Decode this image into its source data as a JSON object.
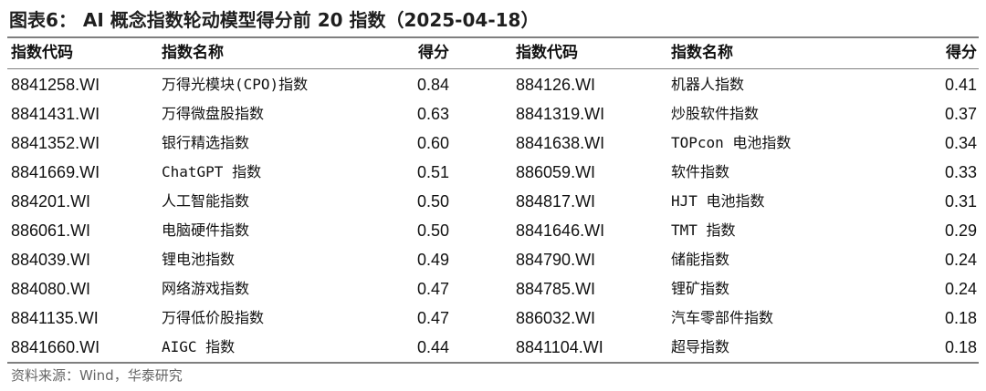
{
  "title": "图表6： AI 概念指数轮动模型得分前 20 指数（2025-04-18）",
  "headers": {
    "code": "指数代码",
    "name": "指数名称",
    "score": "得分"
  },
  "left_rows": [
    {
      "code": "8841258.WI",
      "name": "万得光模块(CPO)指数",
      "score": "0.84"
    },
    {
      "code": "8841431.WI",
      "name": "万得微盘股指数",
      "score": "0.63"
    },
    {
      "code": "8841352.WI",
      "name": "银行精选指数",
      "score": "0.60"
    },
    {
      "code": "8841669.WI",
      "name": "ChatGPT 指数",
      "score": "0.51"
    },
    {
      "code": "884201.WI",
      "name": "人工智能指数",
      "score": "0.50"
    },
    {
      "code": "886061.WI",
      "name": "电脑硬件指数",
      "score": "0.50"
    },
    {
      "code": "884039.WI",
      "name": "锂电池指数",
      "score": "0.49"
    },
    {
      "code": "884080.WI",
      "name": "网络游戏指数",
      "score": "0.47"
    },
    {
      "code": "8841135.WI",
      "name": "万得低价股指数",
      "score": "0.47"
    },
    {
      "code": "8841660.WI",
      "name": "AIGC 指数",
      "score": "0.44"
    }
  ],
  "right_rows": [
    {
      "code": "884126.WI",
      "name": "机器人指数",
      "score": "0.41"
    },
    {
      "code": "8841319.WI",
      "name": "炒股软件指数",
      "score": "0.37"
    },
    {
      "code": "8841638.WI",
      "name": "TOPcon 电池指数",
      "score": "0.34"
    },
    {
      "code": "886059.WI",
      "name": "软件指数",
      "score": "0.33"
    },
    {
      "code": "884817.WI",
      "name": "HJT 电池指数",
      "score": "0.31"
    },
    {
      "code": "8841646.WI",
      "name": "TMT 指数",
      "score": "0.29"
    },
    {
      "code": "884790.WI",
      "name": "储能指数",
      "score": "0.24"
    },
    {
      "code": "884785.WI",
      "name": "锂矿指数",
      "score": "0.24"
    },
    {
      "code": "886032.WI",
      "name": "汽车零部件指数",
      "score": "0.18"
    },
    {
      "code": "8841104.WI",
      "name": "超导指数",
      "score": "0.18"
    }
  ],
  "source": "资料来源：Wind，华泰研究"
}
